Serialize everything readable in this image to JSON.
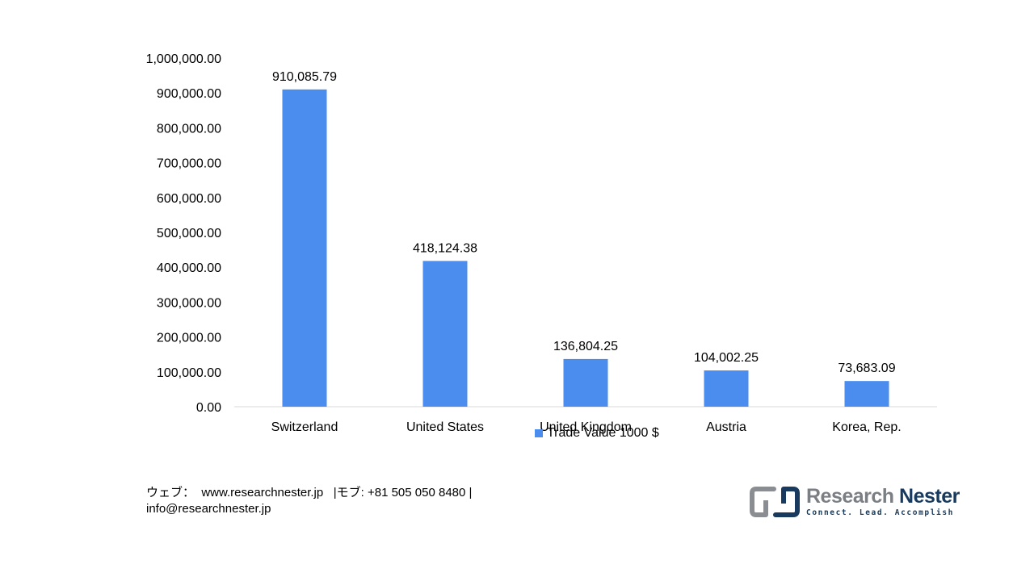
{
  "chart_data": {
    "type": "bar",
    "categories": [
      "Switzerland",
      "United States",
      "United Kingdom",
      "Austria",
      "Korea, Rep."
    ],
    "series": [
      {
        "name": "Trade Value 1000 $",
        "values": [
          910085.79,
          418124.38,
          136804.25,
          104002.25,
          73683.09
        ],
        "value_labels": [
          "910,085.79",
          "418,124.38",
          "136,804.25",
          "104,002.25",
          "73,683.09"
        ]
      }
    ],
    "ylim": [
      0,
      1000000
    ],
    "yticks": [
      0,
      100000,
      200000,
      300000,
      400000,
      500000,
      600000,
      700000,
      800000,
      900000,
      1000000
    ],
    "ytick_labels": [
      "0.00",
      "100,000.00",
      "200,000.00",
      "300,000.00",
      "400,000.00",
      "500,000.00",
      "600,000.00",
      "700,000.00",
      "800,000.00",
      "900,000.00",
      "1,000,000.00"
    ],
    "title": "",
    "xlabel": "",
    "ylabel": "",
    "grid": false,
    "legend_position": "bottom",
    "bar_color": "#4a8dee",
    "axis_color": "#d9d9d9"
  },
  "legend": {
    "label": "Trade Value 1000 $"
  },
  "footer": {
    "contact_line1": "ウェブ：  www.researchnester.jp   |モブ: +81 505 050 8480 |",
    "contact_line2": "info@researchnester.jp"
  },
  "logo": {
    "name_part1": "Research",
    "name_part2": "Nester",
    "tagline": "Connect. Lead. Accomplish",
    "icon": "research-nester-logo-mark"
  }
}
